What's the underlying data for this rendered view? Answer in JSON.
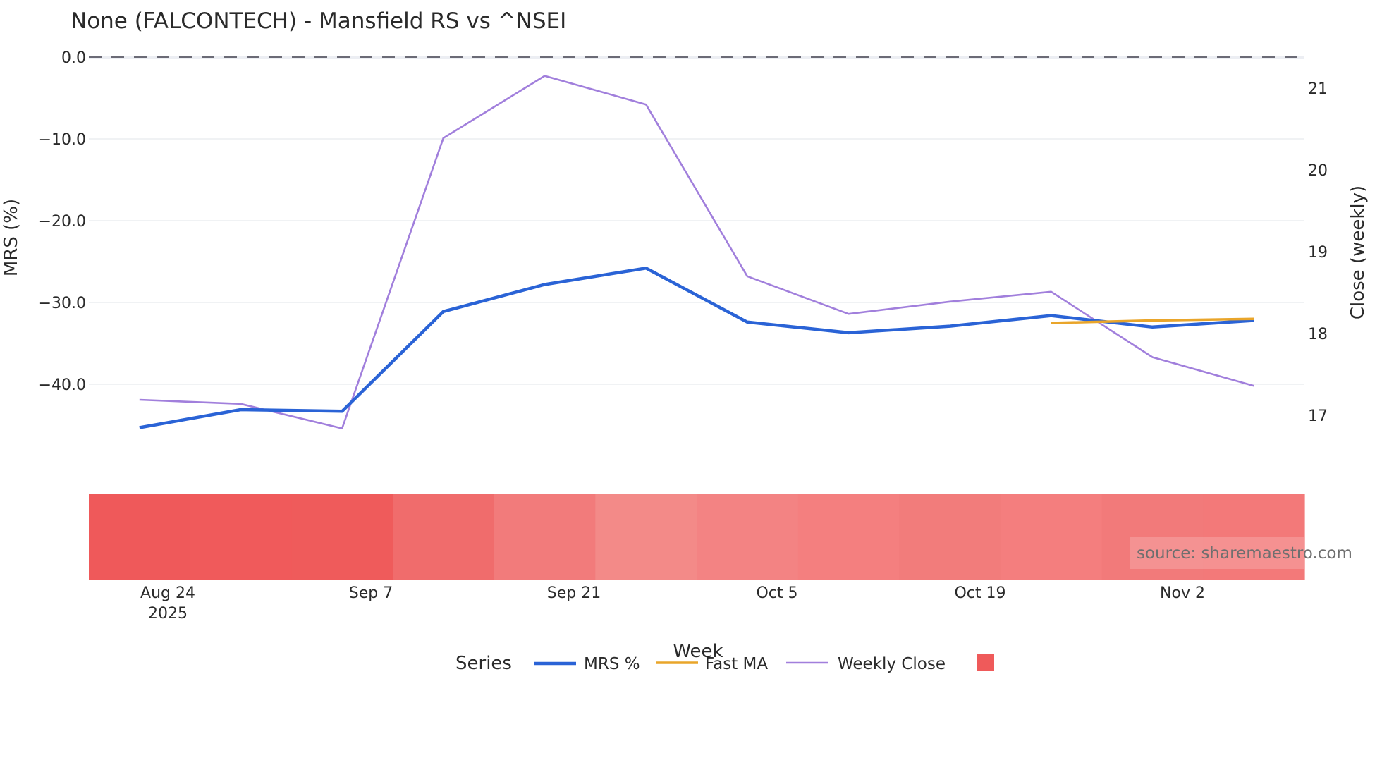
{
  "title": "None (FALCONTECH) - Mansfield RS vs ^NSEI",
  "source_annotation": "source: sharemaestro.com",
  "axes": {
    "y_left": {
      "title": "MRS (%)",
      "ticks": [
        "0.0",
        "−10.0",
        "−20.0",
        "−30.0",
        "−40.0"
      ],
      "tick_values": [
        0,
        -10,
        -20,
        -30,
        -40
      ]
    },
    "y_right": {
      "title": "Close (weekly)",
      "ticks": [
        "21",
        "20",
        "19",
        "18",
        "17"
      ],
      "tick_values": [
        21,
        20,
        19,
        18,
        17
      ]
    },
    "x": {
      "title": "Week",
      "ticks": [
        {
          "label": "Aug 24",
          "sublabel": "2025"
        },
        {
          "label": "Sep 7",
          "sublabel": ""
        },
        {
          "label": "Sep 21",
          "sublabel": ""
        },
        {
          "label": "Oct 5",
          "sublabel": ""
        },
        {
          "label": "Oct 19",
          "sublabel": ""
        },
        {
          "label": "Nov 2",
          "sublabel": ""
        }
      ]
    }
  },
  "legend": {
    "title": "Series",
    "items": [
      {
        "label": "MRS %",
        "color": "#2a63d6",
        "kind": "line"
      },
      {
        "label": "Fast MA",
        "color": "#e9a52a",
        "kind": "line"
      },
      {
        "label": "Weekly Close",
        "color": "#a17fdc",
        "kind": "line"
      },
      {
        "label": "",
        "color": "#ef5a5a",
        "kind": "square"
      }
    ]
  },
  "colors": {
    "mrs": "#2a63d6",
    "fast_ma": "#e9a52a",
    "close": "#a17fdc",
    "zero_line": "#6b6b76",
    "heat": [
      "#ef595a",
      "#f05a5b",
      "#ef5b5b",
      "#f06c6c",
      "#f27b7b",
      "#f38a88",
      "#f38383",
      "#f47f7f",
      "#f27c7b",
      "#f47e7e",
      "#f27a7a",
      "#f37979"
    ]
  },
  "chart_data": {
    "type": "line",
    "title": "None (FALCONTECH) - Mansfield RS vs ^NSEI",
    "xlabel": "Week",
    "ylabel": "MRS (%)",
    "y2label": "Close (weekly)",
    "ylim": [
      -49,
      0.2
    ],
    "y2lim": [
      16.6,
      21.4
    ],
    "x": [
      "2025-08-22",
      "2025-08-29",
      "2025-09-05",
      "2025-09-12",
      "2025-09-19",
      "2025-09-26",
      "2025-10-03",
      "2025-10-10",
      "2025-10-17",
      "2025-10-24",
      "2025-10-31",
      "2025-11-07"
    ],
    "series": [
      {
        "name": "MRS %",
        "axis": "left",
        "values": [
          -45.3,
          -43.1,
          -43.3,
          -31.1,
          -27.8,
          -25.8,
          -32.4,
          -33.7,
          -32.9,
          -31.6,
          -33.0,
          -32.2
        ]
      },
      {
        "name": "Fast MA",
        "axis": "left",
        "values": [
          null,
          null,
          null,
          null,
          null,
          null,
          null,
          null,
          null,
          -32.5,
          -32.2,
          -32.0
        ]
      },
      {
        "name": "Weekly Close",
        "axis": "right",
        "values": [
          17.19,
          17.14,
          16.84,
          20.39,
          21.15,
          20.8,
          18.7,
          18.24,
          18.39,
          18.51,
          17.71,
          17.36
        ]
      }
    ],
    "heatmap_strip": {
      "description": "per-week MRS intensity strip (red shades)",
      "values": [
        -45.3,
        -43.1,
        -43.3,
        -31.1,
        -27.8,
        -25.8,
        -32.4,
        -33.7,
        -32.9,
        -31.6,
        -33.0,
        -32.2
      ]
    },
    "reference_line": {
      "y": 0,
      "style": "dashed"
    },
    "x_ticks": [
      "Aug 24 2025",
      "Sep 7",
      "Sep 21",
      "Oct 5",
      "Oct 19",
      "Nov 2"
    ],
    "grid": true,
    "legend_position": "bottom"
  }
}
